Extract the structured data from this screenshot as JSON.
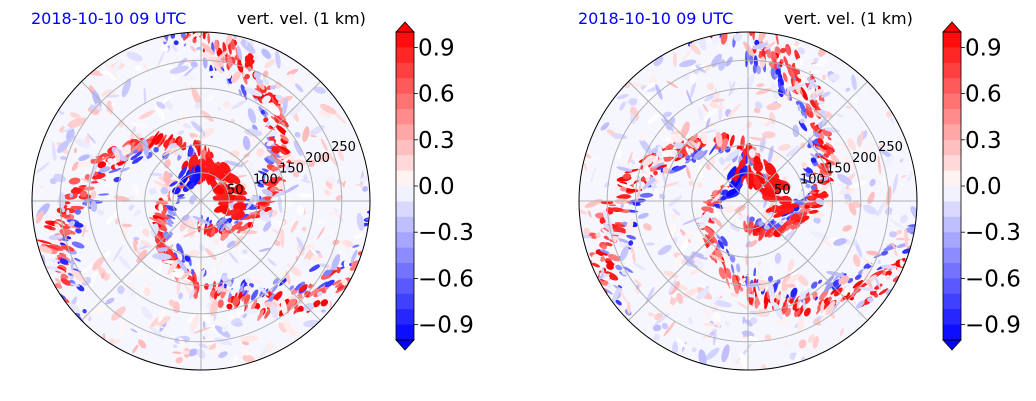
{
  "chart_data": [
    {
      "type": "heatmap",
      "projection": "polar",
      "title_left": "2018-10-10 09 UTC",
      "title_right": "vert. vel. (1 km)",
      "radial_ticks": [
        50,
        100,
        150,
        200,
        250
      ],
      "grid": true,
      "colormap": "bwr",
      "colorbar": {
        "ticks": [
          "0.9",
          "0.6",
          "0.3",
          "0.0",
          "−0.3",
          "−0.6",
          "−0.9"
        ],
        "range": [
          -1.0,
          1.0
        ],
        "levels": 20,
        "extend": "both"
      }
    },
    {
      "type": "heatmap",
      "projection": "polar",
      "title_left": "2018-10-10 09 UTC",
      "title_right": "vert. vel. (1 km)",
      "radial_ticks": [
        50,
        100,
        150,
        200,
        250
      ],
      "grid": true,
      "colormap": "bwr",
      "colorbar": {
        "ticks": [
          "0.9",
          "0.6",
          "0.3",
          "0.0",
          "−0.3",
          "−0.6",
          "−0.9"
        ],
        "range": [
          -1.0,
          1.0
        ],
        "levels": 20,
        "extend": "both"
      }
    }
  ],
  "colors": {
    "negative": "#0000ff",
    "neutral": "#ffffff",
    "positive": "#ff0000",
    "grid": "#b0b0b0"
  }
}
